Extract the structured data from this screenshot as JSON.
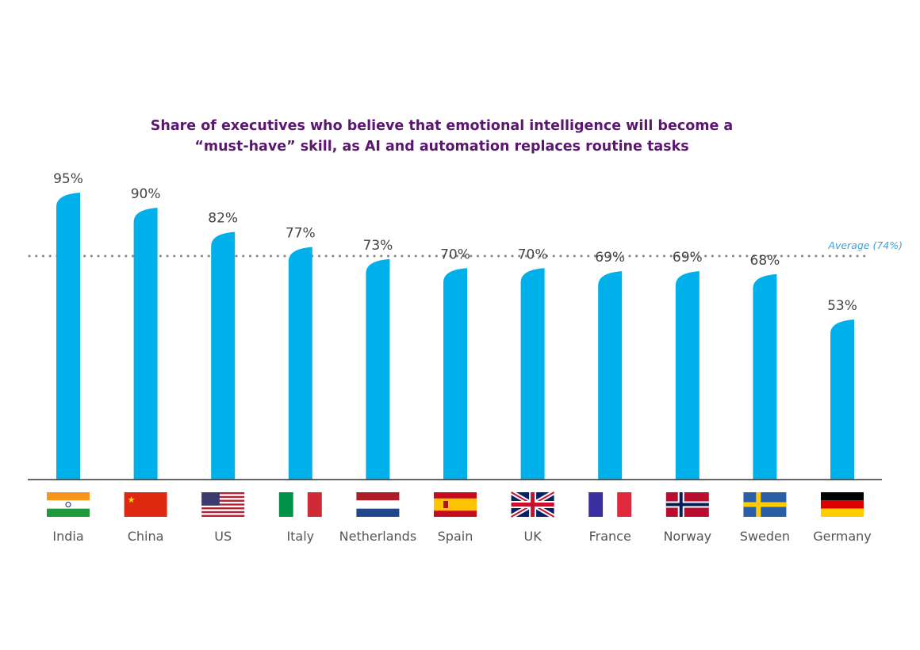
{
  "chart_data": {
    "type": "bar",
    "title_lines": [
      "Share of executives who believe that emotional intelligence will become a",
      "“must-have” skill, as AI and automation replaces routine tasks"
    ],
    "categories": [
      "India",
      "China",
      "US",
      "Italy",
      "Netherlands",
      "Spain",
      "UK",
      "France",
      "Norway",
      "Sweden",
      "Germany"
    ],
    "values": [
      95,
      90,
      82,
      77,
      73,
      70,
      70,
      69,
      69,
      68,
      53
    ],
    "value_labels": [
      "95%",
      "90%",
      "82%",
      "77%",
      "73%",
      "70%",
      "70%",
      "69%",
      "69%",
      "68%",
      "53%"
    ],
    "unit": "%",
    "ylim": [
      0,
      100
    ],
    "average": {
      "value": 74,
      "label": "Average (74%)"
    },
    "grid": false,
    "legend": "none",
    "colors": {
      "bar": "#00b0ea",
      "title": "#5a1670",
      "average_line": "#888888",
      "average_label": "#3ba3dc",
      "axis": "#333333"
    },
    "category_icons": [
      "flag-india",
      "flag-china",
      "flag-us",
      "flag-italy",
      "flag-netherlands",
      "flag-spain",
      "flag-uk",
      "flag-france",
      "flag-norway",
      "flag-sweden",
      "flag-germany"
    ]
  }
}
